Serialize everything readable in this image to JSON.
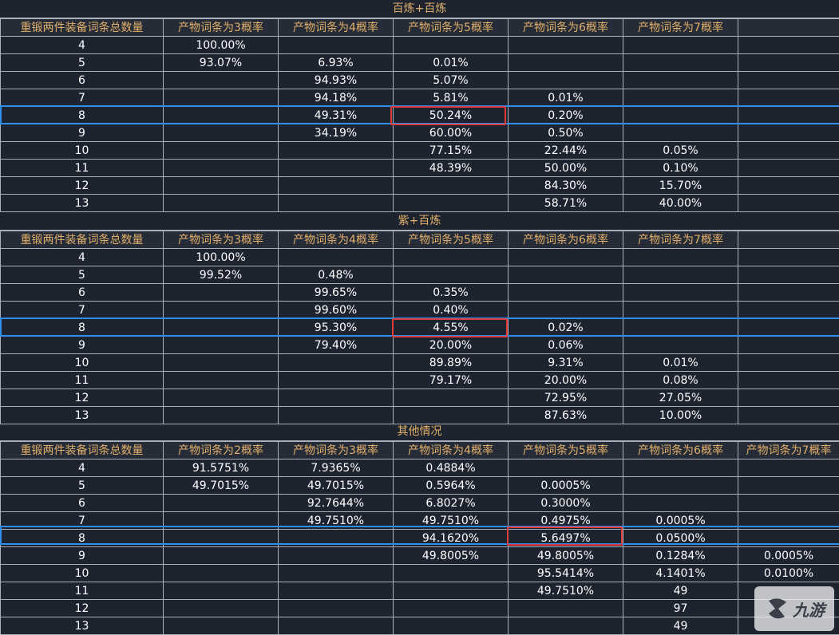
{
  "tables": [
    {
      "title": "百炼+百炼",
      "headers": [
        "重锻两件装备词条总数量",
        "产物词条为3概率",
        "产物词条为4概率",
        "产物词条为5概率",
        "产物词条为6概率",
        "产物词条为7概率",
        ""
      ],
      "rows": [
        [
          "4",
          "100.00%",
          "",
          "",
          "",
          "",
          ""
        ],
        [
          "5",
          "93.07%",
          "6.93%",
          "0.01%",
          "",
          "",
          ""
        ],
        [
          "6",
          "",
          "94.93%",
          "5.07%",
          "",
          "",
          ""
        ],
        [
          "7",
          "",
          "94.18%",
          "5.81%",
          "0.01%",
          "",
          ""
        ],
        [
          "8",
          "",
          "49.31%",
          "50.24%",
          "0.20%",
          "",
          ""
        ],
        [
          "9",
          "",
          "34.19%",
          "60.00%",
          "0.50%",
          "",
          ""
        ],
        [
          "10",
          "",
          "",
          "77.15%",
          "22.44%",
          "0.05%",
          ""
        ],
        [
          "11",
          "",
          "",
          "48.39%",
          "50.00%",
          "0.10%",
          ""
        ],
        [
          "12",
          "",
          "",
          "",
          "84.30%",
          "15.70%",
          ""
        ],
        [
          "13",
          "",
          "",
          "",
          "58.71%",
          "40.00%",
          ""
        ]
      ]
    },
    {
      "title": "紫+百炼",
      "headers": [
        "重锻两件装备词条总数量",
        "产物词条为3概率",
        "产物词条为4概率",
        "产物词条为5概率",
        "产物词条为6概率",
        "产物词条为7概率",
        ""
      ],
      "rows": [
        [
          "4",
          "100.00%",
          "",
          "",
          "",
          "",
          ""
        ],
        [
          "5",
          "99.52%",
          "0.48%",
          "",
          "",
          "",
          ""
        ],
        [
          "6",
          "",
          "99.65%",
          "0.35%",
          "",
          "",
          ""
        ],
        [
          "7",
          "",
          "99.60%",
          "0.40%",
          "",
          "",
          ""
        ],
        [
          "8",
          "",
          "95.30%",
          "4.55%",
          "0.02%",
          "",
          ""
        ],
        [
          "9",
          "",
          "79.40%",
          "20.00%",
          "0.06%",
          "",
          ""
        ],
        [
          "10",
          "",
          "",
          "89.89%",
          "9.31%",
          "0.01%",
          ""
        ],
        [
          "11",
          "",
          "",
          "79.17%",
          "20.00%",
          "0.08%",
          ""
        ],
        [
          "12",
          "",
          "",
          "",
          "72.95%",
          "27.05%",
          ""
        ],
        [
          "13",
          "",
          "",
          "",
          "87.63%",
          "10.00%",
          ""
        ]
      ]
    },
    {
      "title": "其他情况",
      "headers": [
        "重锻两件装备词条总数量",
        "产物词条为2概率",
        "产物词条为3概率",
        "产物词条为4概率",
        "产物词条为5概率",
        "产物词条为6概率",
        "产物词条为7概率"
      ],
      "rows": [
        [
          "4",
          "91.5751%",
          "7.9365%",
          "0.4884%",
          "",
          "",
          ""
        ],
        [
          "5",
          "49.7015%",
          "49.7015%",
          "0.5964%",
          "0.0005%",
          "",
          ""
        ],
        [
          "6",
          "",
          "92.7644%",
          "6.8027%",
          "0.3000%",
          "",
          ""
        ],
        [
          "7",
          "",
          "49.7510%",
          "49.7510%",
          "0.4975%",
          "0.0005%",
          ""
        ],
        [
          "8",
          "",
          "",
          "94.1620%",
          "5.6497%",
          "0.0500%",
          ""
        ],
        [
          "9",
          "",
          "",
          "49.8005%",
          "49.8005%",
          "0.1284%",
          "0.0005%"
        ],
        [
          "10",
          "",
          "",
          "",
          "95.5414%",
          "4.1401%",
          "0.0100%"
        ],
        [
          "11",
          "",
          "",
          "",
          "49.7510%",
          "49",
          ""
        ],
        [
          "12",
          "",
          "",
          "",
          "",
          "97",
          ""
        ],
        [
          "13",
          "",
          "",
          "",
          "",
          "49",
          ""
        ]
      ]
    }
  ],
  "watermark": {
    "text": "九游",
    "icon": "jiuyou-logo-icon"
  }
}
